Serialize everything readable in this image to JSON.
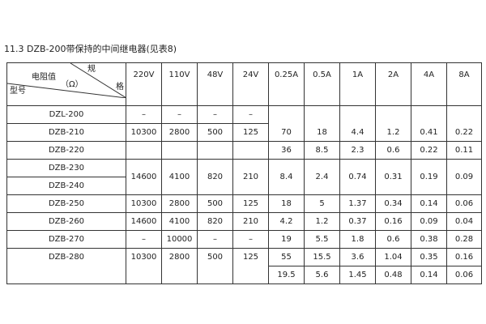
{
  "title": "11.3 DZB-200带保持的中间继电器(见表8)",
  "header": {
    "corner_top": "规",
    "corner_mid": "电阻值",
    "corner_unit": "（Ω）",
    "corner_right": "格",
    "corner_bottom": "型号",
    "columns": [
      "220V",
      "110V",
      "48V",
      "24V",
      "0.25A",
      "0.5A",
      "1A",
      "2A",
      "4A",
      "8A"
    ]
  },
  "rows": {
    "dzl200": {
      "model": "DZL-200",
      "v": [
        "–",
        "–",
        "–",
        "–"
      ]
    },
    "dzb210": {
      "model": "DZB-210",
      "v": [
        "10300",
        "2800",
        "500",
        "125"
      ],
      "a": [
        "70",
        "18",
        "4.4",
        "1.2",
        "0.41",
        "0.22"
      ]
    },
    "dzb220": {
      "model": "DZB-220",
      "a": [
        "36",
        "8.5",
        "2.3",
        "0.6",
        "0.22",
        "0.11"
      ]
    },
    "dzb230": {
      "model": "DZB-230",
      "v": [
        "14600",
        "4100",
        "820",
        "210"
      ],
      "a": [
        "8.4",
        "2.4",
        "0.74",
        "0.31",
        "0.19",
        "0.09"
      ]
    },
    "dzb240": {
      "model": "DZB-240"
    },
    "dzb250": {
      "model": "DZB-250",
      "v": [
        "10300",
        "2800",
        "500",
        "125"
      ],
      "a": [
        "18",
        "5",
        "1.37",
        "0.34",
        "0.14",
        "0.06"
      ]
    },
    "dzb260": {
      "model": "DZB-260",
      "v": [
        "14600",
        "4100",
        "820",
        "210"
      ],
      "a": [
        "4.2",
        "1.2",
        "0.37",
        "0.16",
        "0.09",
        "0.04"
      ]
    },
    "dzb270": {
      "model": "DZB-270",
      "v": [
        "–",
        "10000",
        "–",
        "–"
      ],
      "a": [
        "19",
        "5.5",
        "1.8",
        "0.6",
        "0.38",
        "0.28"
      ]
    },
    "dzb280": {
      "model": "DZB-280",
      "v": [
        "10300",
        "2800",
        "500",
        "125"
      ],
      "a": [
        "55",
        "15.5",
        "3.6",
        "1.04",
        "0.35",
        "0.16"
      ],
      "a2": [
        "19.5",
        "5.6",
        "1.45",
        "0.48",
        "0.14",
        "0.06"
      ]
    }
  }
}
